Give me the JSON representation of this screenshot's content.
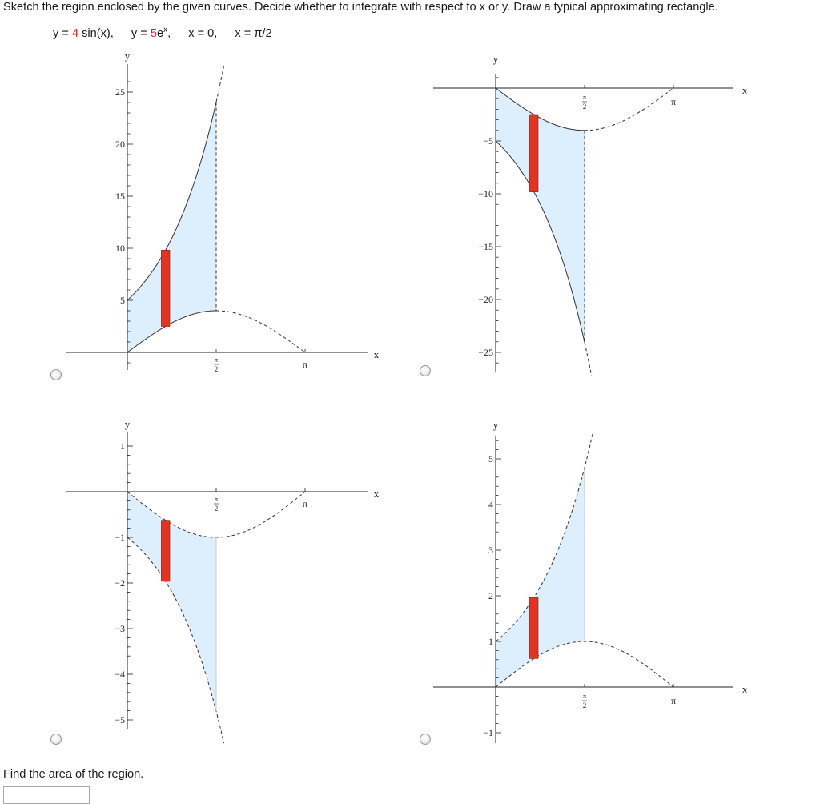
{
  "instruction": "Sketch the region enclosed by the given curves. Decide whether to integrate with respect to x or y. Draw a typical approximating rectangle.",
  "equations": {
    "eq1_prefix": "y = ",
    "eq1_coef": "4",
    "eq1_func": " sin(x),",
    "eq2_prefix": "y = ",
    "eq2_coef": "5",
    "eq2_base": "e",
    "eq2_exp": "x",
    "eq2_suffix": ",",
    "eq3": "x = 0,",
    "eq4": "x = π/2"
  },
  "colors": {
    "accent_red": "#d22222",
    "rect_fill": "#e8311f",
    "region_fill": "#ddeefc",
    "curve": "#333333",
    "axis": "#222222"
  },
  "chart_data": [
    {
      "type": "area",
      "option_index": 1,
      "xlabel": "x",
      "ylabel": "y",
      "xlim": [
        0,
        3.14159
      ],
      "ylim": [
        -1,
        26
      ],
      "xtick_labels": [
        "π/2",
        "π"
      ],
      "ytick_labels": [
        "5",
        "10",
        "15",
        "20",
        "25"
      ],
      "yticks": [
        5,
        10,
        15,
        20,
        25
      ],
      "curves": [
        {
          "expr": "5e^x",
          "values_at": {
            "0": 5,
            "π/2": 24.05
          }
        },
        {
          "expr": "4 sin(x)",
          "values_at": {
            "0": 0,
            "π/2": 4,
            "π": 0
          }
        }
      ],
      "shaded_between_x": [
        0,
        1.5708
      ],
      "approx_rectangle_x": [
        0.6,
        0.75
      ]
    },
    {
      "type": "area",
      "option_index": 2,
      "xlabel": "x",
      "ylabel": "y",
      "xlim": [
        0,
        3.14159
      ],
      "ylim": [
        -26,
        1
      ],
      "xtick_labels": [
        "π/2",
        "π"
      ],
      "ytick_labels": [
        "−5",
        "−10",
        "−15",
        "−20",
        "−25"
      ],
      "yticks": [
        -5,
        -10,
        -15,
        -20,
        -25
      ],
      "curves": [
        {
          "expr": "-5e^x",
          "values_at": {
            "0": -5,
            "π/2": -24.05
          }
        },
        {
          "expr": "-4 sin(x)",
          "values_at": {
            "0": 0,
            "π/2": -4,
            "π": 0
          }
        }
      ],
      "shaded_between_x": [
        0,
        1.5708
      ],
      "approx_rectangle_x": [
        0.6,
        0.75
      ]
    },
    {
      "type": "area",
      "option_index": 3,
      "xlabel": "x",
      "ylabel": "y",
      "xlim": [
        0,
        3.14159
      ],
      "ylim": [
        -5.3,
        1
      ],
      "xtick_labels": [
        "π/2",
        "π"
      ],
      "ytick_labels": [
        "1",
        "−1",
        "−2",
        "−3",
        "−4",
        "−5"
      ],
      "yticks": [
        1,
        -1,
        -2,
        -3,
        -4,
        -5
      ],
      "curves": [
        {
          "expr": "-e^x",
          "values_at": {
            "0": -1,
            "π/2": -4.81
          }
        },
        {
          "expr": "-sin(x)",
          "values_at": {
            "0": 0,
            "π/2": -1,
            "π": 0
          }
        }
      ],
      "shaded_between_x": [
        0,
        1.5708
      ],
      "approx_rectangle_x": [
        0.6,
        0.75
      ]
    },
    {
      "type": "area",
      "option_index": 4,
      "xlabel": "x",
      "ylabel": "y",
      "xlim": [
        0,
        3.14159
      ],
      "ylim": [
        -1,
        5.5
      ],
      "xtick_labels": [
        "π/2",
        "π"
      ],
      "ytick_labels": [
        "5",
        "4",
        "3",
        "2",
        "1",
        "−1"
      ],
      "yticks": [
        5,
        4,
        3,
        2,
        1,
        -1
      ],
      "curves": [
        {
          "expr": "e^x",
          "values_at": {
            "0": 1,
            "π/2": 4.81
          }
        },
        {
          "expr": "sin(x)",
          "values_at": {
            "0": 0,
            "π/2": 1,
            "π": 0
          }
        }
      ],
      "shaded_between_x": [
        0,
        1.5708
      ],
      "approx_rectangle_x": [
        0.6,
        0.75
      ]
    }
  ],
  "prompt": "Find the area of the region.",
  "answer": {
    "value": "",
    "placeholder": ""
  }
}
